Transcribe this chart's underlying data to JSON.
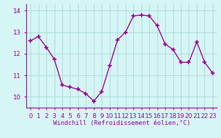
{
  "x": [
    0,
    1,
    2,
    3,
    4,
    5,
    6,
    7,
    8,
    9,
    10,
    11,
    12,
    13,
    14,
    15,
    16,
    17,
    18,
    19,
    20,
    21,
    22,
    23
  ],
  "y": [
    12.6,
    12.8,
    12.3,
    11.75,
    10.55,
    10.45,
    10.35,
    10.15,
    9.8,
    10.25,
    11.45,
    12.65,
    13.0,
    13.75,
    13.8,
    13.75,
    13.3,
    12.45,
    12.2,
    11.6,
    11.6,
    12.55,
    11.6,
    11.1
  ],
  "line_color": "#990099",
  "marker": "+",
  "marker_size": 4,
  "marker_linewidth": 1.2,
  "bg_color": "#d6f5f5",
  "grid_color": "#b0dede",
  "ylim": [
    9.5,
    14.3
  ],
  "xlim": [
    -0.5,
    23.5
  ],
  "yticks": [
    10,
    11,
    12,
    13,
    14
  ],
  "xlabel": "Windchill (Refroidissement éolien,°C)",
  "xlabel_fontsize": 6.5,
  "tick_fontsize": 6.5,
  "line_width": 1.0,
  "tick_color": "#990099",
  "spine_color": "#990099"
}
